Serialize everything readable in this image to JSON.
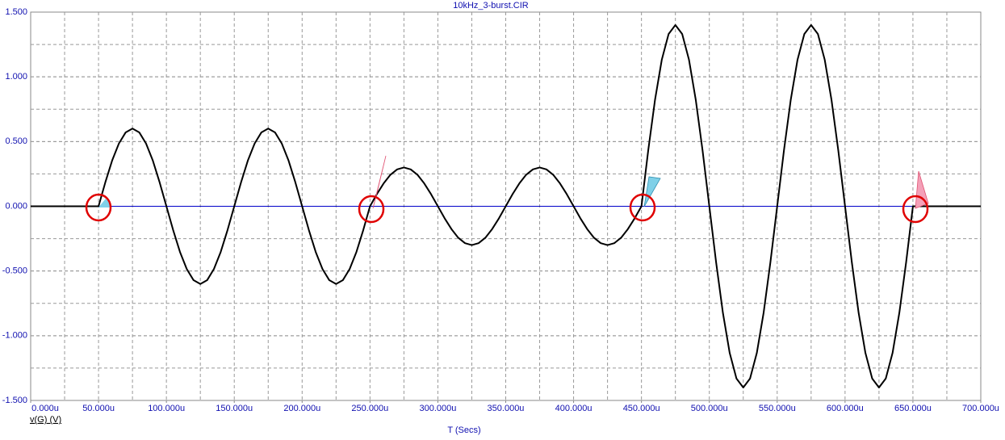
{
  "chart_data": {
    "type": "line",
    "title": "10kHz_3-burst.CIR",
    "x_label": "T (Secs)",
    "xlim": [
      0,
      700
    ],
    "ylim": [
      -1.5,
      1.5
    ],
    "xticks": [
      {
        "value": 0,
        "label": "0.000u"
      },
      {
        "value": 50,
        "label": "50.000u"
      },
      {
        "value": 100,
        "label": "100.000u"
      },
      {
        "value": 150,
        "label": "150.000u"
      },
      {
        "value": 200,
        "label": "200.000u"
      },
      {
        "value": 250,
        "label": "250.000u"
      },
      {
        "value": 300,
        "label": "300.000u"
      },
      {
        "value": 350,
        "label": "350.000u"
      },
      {
        "value": 400,
        "label": "400.000u"
      },
      {
        "value": 450,
        "label": "450.000u"
      },
      {
        "value": 500,
        "label": "500.000u"
      },
      {
        "value": 550,
        "label": "550.000u"
      },
      {
        "value": 600,
        "label": "600.000u"
      },
      {
        "value": 650,
        "label": "650.000u"
      },
      {
        "value": 700,
        "label": "700.000u"
      }
    ],
    "yticks": [
      {
        "value": 1.5,
        "label": "1.500"
      },
      {
        "value": 1,
        "label": "1.000"
      },
      {
        "value": 0.5,
        "label": "0.500"
      },
      {
        "value": 0,
        "label": "0.000"
      },
      {
        "value": -0.5,
        "label": "-0.500"
      },
      {
        "value": -1,
        "label": "-1.000"
      },
      {
        "value": -1.5,
        "label": "-1.500"
      }
    ],
    "xgrid": [
      25,
      50,
      75,
      100,
      125,
      150,
      175,
      200,
      225,
      250,
      275,
      300,
      325,
      350,
      375,
      400,
      425,
      450,
      475,
      500,
      525,
      550,
      575,
      600,
      625,
      650,
      675
    ],
    "ygrid": [
      1.25,
      1,
      0.75,
      0.5,
      0.25,
      -0.25,
      -0.5,
      -0.75,
      -1,
      -1.25
    ],
    "grid": true,
    "x": [
      0,
      5,
      10,
      15,
      20,
      25,
      30,
      35,
      40,
      45,
      50,
      55,
      60,
      65,
      70,
      75,
      80,
      85,
      90,
      95,
      100,
      105,
      110,
      115,
      120,
      125,
      130,
      135,
      140,
      145,
      150,
      155,
      160,
      165,
      170,
      175,
      180,
      185,
      190,
      195,
      200,
      205,
      210,
      215,
      220,
      225,
      230,
      235,
      240,
      245,
      250,
      255,
      260,
      265,
      270,
      275,
      280,
      285,
      290,
      295,
      300,
      305,
      310,
      315,
      320,
      325,
      330,
      335,
      340,
      345,
      350,
      355,
      360,
      365,
      370,
      375,
      380,
      385,
      390,
      395,
      400,
      405,
      410,
      415,
      420,
      425,
      430,
      435,
      440,
      445,
      450,
      455,
      460,
      465,
      470,
      475,
      480,
      485,
      490,
      495,
      500,
      505,
      510,
      515,
      520,
      525,
      530,
      535,
      540,
      545,
      550,
      555,
      560,
      565,
      570,
      575,
      580,
      585,
      590,
      595,
      600,
      605,
      610,
      615,
      620,
      625,
      630,
      635,
      640,
      645,
      650,
      655,
      660,
      665,
      670,
      675,
      680,
      685,
      690,
      695,
      700
    ],
    "series": [
      {
        "name": "v(G) (V)",
        "color": "#000000",
        "values": [
          0,
          0,
          0,
          0,
          0,
          0,
          0,
          0,
          0,
          0,
          0,
          0.185,
          0.353,
          0.485,
          0.571,
          0.6,
          0.571,
          0.485,
          0.353,
          0.185,
          0,
          -0.185,
          -0.353,
          -0.485,
          -0.571,
          -0.6,
          -0.571,
          -0.485,
          -0.353,
          -0.185,
          0,
          0.185,
          0.353,
          0.485,
          0.571,
          0.6,
          0.571,
          0.485,
          0.353,
          0.185,
          0,
          -0.185,
          -0.353,
          -0.485,
          -0.571,
          -0.6,
          -0.571,
          -0.485,
          -0.353,
          -0.185,
          0,
          0.093,
          0.176,
          0.243,
          0.285,
          0.3,
          0.285,
          0.243,
          0.176,
          0.093,
          0,
          -0.093,
          -0.176,
          -0.243,
          -0.285,
          -0.3,
          -0.285,
          -0.243,
          -0.176,
          -0.093,
          0,
          0.093,
          0.176,
          0.243,
          0.285,
          0.3,
          0.285,
          0.243,
          0.176,
          0.093,
          0,
          -0.093,
          -0.176,
          -0.243,
          -0.285,
          -0.3,
          -0.285,
          -0.243,
          -0.176,
          -0.093,
          0,
          0.433,
          0.823,
          1.133,
          1.331,
          1.4,
          1.331,
          1.133,
          0.823,
          0.433,
          0,
          -0.433,
          -0.823,
          -1.133,
          -1.331,
          -1.4,
          -1.331,
          -1.133,
          -0.823,
          -0.433,
          0,
          0.433,
          0.823,
          1.133,
          1.331,
          1.4,
          1.331,
          1.133,
          0.823,
          0.433,
          0,
          -0.433,
          -0.823,
          -1.133,
          -1.331,
          -1.4,
          -1.331,
          -1.133,
          -0.823,
          -0.433,
          0,
          0,
          0,
          0,
          0,
          0,
          0,
          0,
          0,
          0,
          0
        ]
      }
    ]
  }
}
